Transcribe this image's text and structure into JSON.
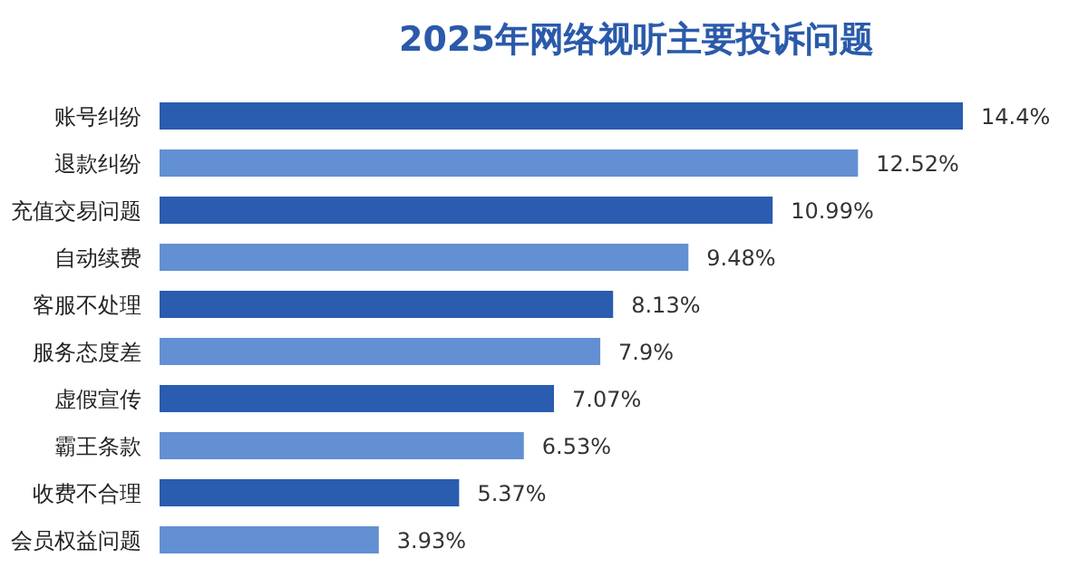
{
  "chart_data": {
    "type": "bar",
    "orientation": "horizontal",
    "title": "2025年网络视听主要投诉问题",
    "categories": [
      "账号纠纷",
      "退款纠纷",
      "充值交易问题",
      "自动续费",
      "客服不处理",
      "服务态度差",
      "虚假宣传",
      "霸王条款",
      "收费不合理",
      "会员权益问题"
    ],
    "values": [
      14.4,
      12.52,
      10.99,
      9.48,
      8.13,
      7.9,
      7.07,
      6.53,
      5.37,
      3.93
    ],
    "value_labels": [
      "14.4%",
      "12.52%",
      "10.99%",
      "9.48%",
      "8.13%",
      "7.9%",
      "7.07%",
      "6.53%",
      "5.37%",
      "3.93%"
    ],
    "colors": [
      "#2a5cb0",
      "#6390d2",
      "#2a5cb0",
      "#6390d2",
      "#2a5cb0",
      "#6390d2",
      "#2a5cb0",
      "#6390d2",
      "#2a5cb0",
      "#6390d2"
    ]
  }
}
